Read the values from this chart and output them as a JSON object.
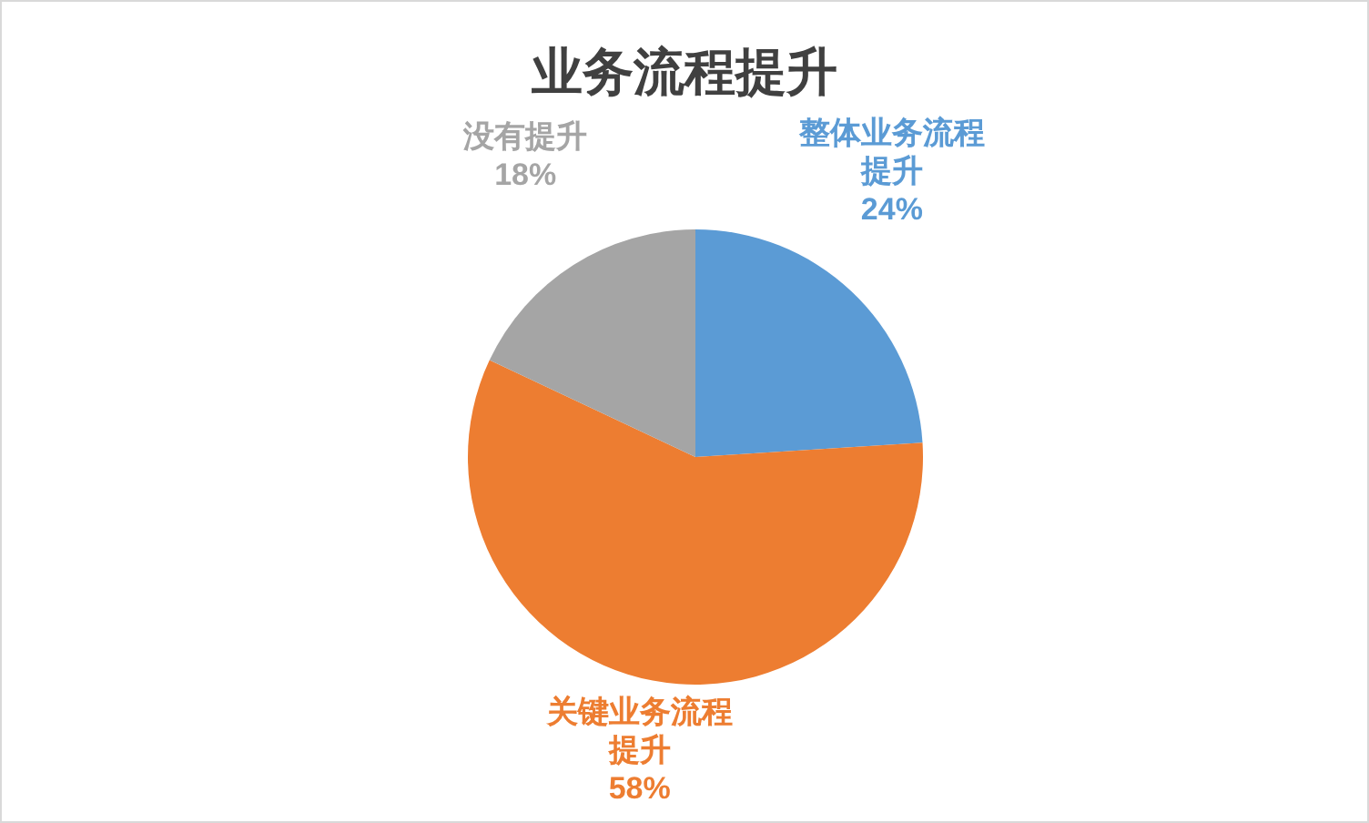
{
  "chart_data": {
    "type": "pie",
    "title": "业务流程提升",
    "categories": [
      "整体业务流程提升",
      "关键业务流程提升",
      "没有提升"
    ],
    "values": [
      24,
      58,
      18
    ],
    "value_labels": [
      "24%",
      "58%",
      "18%"
    ],
    "colors": [
      "#5b9bd5",
      "#ed7d31",
      "#a5a5a5"
    ],
    "legend": false
  }
}
